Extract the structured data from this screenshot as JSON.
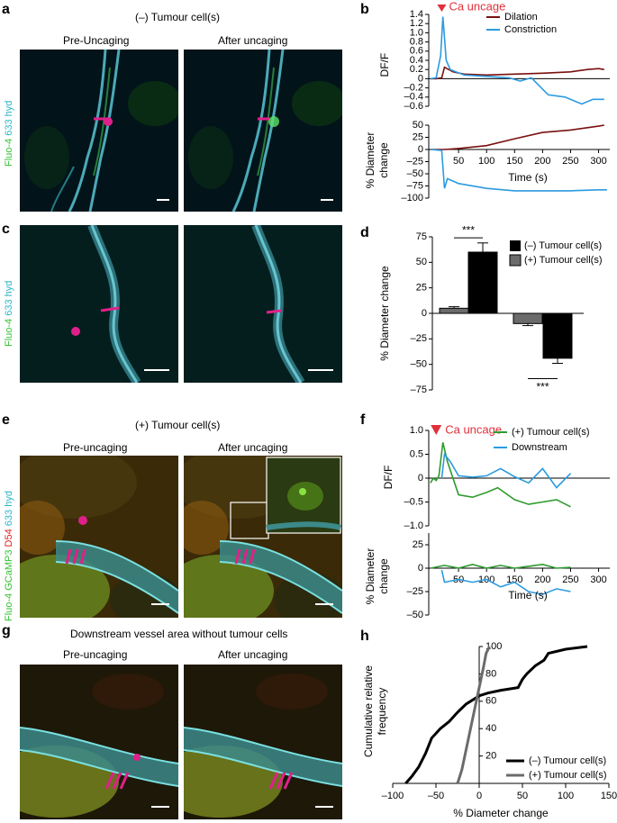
{
  "panels": {
    "a": {
      "letter": "a",
      "title": "(–) Tumour cell(s)",
      "left": "Pre-Uncaging",
      "right": "After uncaging",
      "ylabel_green": "Fluo-4",
      "ylabel_cyan": "633 hyd"
    },
    "b": {
      "letter": "b"
    },
    "c": {
      "letter": "c",
      "ylabel_green": "Fluo-4",
      "ylabel_cyan": "633 hyd"
    },
    "d": {
      "letter": "d"
    },
    "e": {
      "letter": "e",
      "title": "(+) Tumour cell(s)",
      "left": "Pre-uncaging",
      "right": "After uncaging",
      "ylabel_green": "Fluo-4 GCaMP3",
      "ylabel_red": "D54",
      "ylabel_cyan": "633 hyd"
    },
    "f": {
      "letter": "f"
    },
    "g": {
      "letter": "g",
      "title": "Downstream vessel area without tumour cells",
      "left": "Pre-uncaging",
      "right": "After uncaging"
    },
    "h": {
      "letter": "h"
    }
  },
  "colors": {
    "dark_red": "#7a1010",
    "blue": "#2b9be0",
    "green": "#2e9a2e",
    "gray": "#6b6b6b",
    "black": "#000000",
    "magenta": "#e0208a",
    "ca_red": "#e0303a"
  },
  "chart_data": [
    {
      "id": "b_top",
      "type": "line",
      "ylabel": "DF/F",
      "annotation": "Ca uncage",
      "ylim": [
        -0.7,
        1.4
      ],
      "yticks": [
        "1.4",
        "1.2",
        "1.0",
        "0.8",
        "0.6",
        "0.4",
        "0.2",
        "0",
        "–0.2",
        "–0.4",
        "–0.6"
      ],
      "ytick_values": [
        1.4,
        1.2,
        1.0,
        0.8,
        0.6,
        0.4,
        0.2,
        0,
        -0.2,
        -0.4,
        -0.6
      ],
      "series": [
        {
          "name": "Dilation",
          "color": "#7a1010",
          "x": [
            0,
            10,
            20,
            25,
            40,
            60,
            100,
            150,
            200,
            250,
            280,
            300,
            310
          ],
          "y": [
            0,
            0,
            0.02,
            0.25,
            0.15,
            0.1,
            0.08,
            0.1,
            0.12,
            0.15,
            0.2,
            0.22,
            0.2
          ]
        },
        {
          "name": "Constriction",
          "color": "#2b9be0",
          "x": [
            0,
            10,
            18,
            22,
            28,
            35,
            60,
            100,
            140,
            160,
            180,
            210,
            240,
            270,
            290,
            310
          ],
          "y": [
            0,
            0.02,
            0.5,
            1.35,
            0.4,
            0.2,
            0.08,
            0.05,
            0.02,
            -0.05,
            0.02,
            -0.35,
            -0.4,
            -0.55,
            -0.45,
            -0.45
          ]
        }
      ]
    },
    {
      "id": "b_bottom",
      "type": "line",
      "ylabel": "% Diameter change",
      "xlabel": "Time (s)",
      "xlim": [
        0,
        320
      ],
      "xticks": [
        50,
        100,
        150,
        200,
        250,
        300
      ],
      "ylim": [
        -100,
        50
      ],
      "yticks": [
        "50",
        "25",
        "0",
        "–25",
        "–50",
        "–75",
        "–100"
      ],
      "ytick_values": [
        50,
        25,
        0,
        -25,
        -50,
        -75,
        -100
      ],
      "series": [
        {
          "name": "Dilation",
          "color": "#7a1010",
          "x": [
            0,
            25,
            50,
            100,
            150,
            200,
            250,
            300,
            310
          ],
          "y": [
            0,
            0,
            2,
            8,
            22,
            35,
            40,
            48,
            50
          ]
        },
        {
          "name": "Constriction",
          "color": "#2b9be0",
          "x": [
            0,
            20,
            25,
            30,
            50,
            100,
            150,
            200,
            250,
            300,
            315
          ],
          "y": [
            0,
            -2,
            -80,
            -60,
            -70,
            -80,
            -85,
            -85,
            -85,
            -83,
            -83
          ]
        }
      ]
    },
    {
      "id": "d",
      "type": "bar",
      "ylabel": "% Diameter change",
      "ylim": [
        -75,
        75
      ],
      "yticks": [
        "75",
        "50",
        "25",
        "0",
        "–25",
        "–50",
        "–75"
      ],
      "ytick_values": [
        75,
        50,
        25,
        0,
        -25,
        -50,
        -75
      ],
      "groups": [
        {
          "neg_tumour": 60,
          "neg_err": 9,
          "pos_tumour": 5,
          "pos_err": 1.5,
          "sig": "***"
        },
        {
          "neg_tumour": -44,
          "neg_err": 5,
          "pos_tumour": -10,
          "pos_err": 2,
          "sig": "***"
        }
      ],
      "legend": [
        "(–) Tumour cell(s)",
        "(+) Tumour cell(s)"
      ]
    },
    {
      "id": "f_top",
      "type": "line",
      "ylabel": "DF/F",
      "annotation": "Ca uncage",
      "ylim": [
        -1.0,
        1.0
      ],
      "yticks": [
        "1.0",
        "0.5",
        "0",
        "–0.5",
        "–1.0"
      ],
      "ytick_values": [
        1.0,
        0.5,
        0,
        -0.5,
        -1.0
      ],
      "series": [
        {
          "name": "(+) Tumour cell(s)",
          "color": "#2e9a2e",
          "x": [
            0,
            5,
            10,
            15,
            22,
            30,
            50,
            75,
            100,
            120,
            150,
            175,
            200,
            225,
            250
          ],
          "y": [
            -0.1,
            0,
            -0.05,
            0.05,
            0.75,
            0.35,
            -0.35,
            -0.4,
            -0.3,
            -0.2,
            -0.45,
            -0.55,
            -0.5,
            -0.45,
            -0.6
          ]
        },
        {
          "name": "Downstream",
          "color": "#2b9be0",
          "x": [
            20,
            25,
            35,
            50,
            75,
            100,
            125,
            150,
            175,
            200,
            225,
            250
          ],
          "y": [
            0,
            0.5,
            0.35,
            0.05,
            0.02,
            0.05,
            0.2,
            0.03,
            -0.1,
            0.2,
            -0.2,
            0.1
          ]
        }
      ]
    },
    {
      "id": "f_bottom",
      "type": "line",
      "ylabel": "% Diameter change",
      "xlabel": "Time (s)",
      "xlim": [
        0,
        320
      ],
      "xticks": [
        50,
        100,
        150,
        200,
        250,
        300
      ],
      "ylim": [
        -50,
        37.5
      ],
      "yticks": [
        "25",
        "0",
        "–25",
        "–50"
      ],
      "ytick_values": [
        25,
        0,
        -25,
        -50
      ],
      "series": [
        {
          "name": "(+) Tumour cell(s)",
          "color": "#2e9a2e",
          "x": [
            0,
            25,
            50,
            75,
            100,
            125,
            150,
            175,
            200,
            225,
            250
          ],
          "y": [
            0,
            3,
            0,
            4,
            0,
            3,
            0,
            2,
            4,
            0,
            1
          ]
        },
        {
          "name": "Downstream",
          "color": "#2b9be0",
          "x": [
            20,
            25,
            50,
            75,
            100,
            125,
            150,
            175,
            200,
            225,
            250
          ],
          "y": [
            -2,
            -15,
            -12,
            -15,
            -12,
            -20,
            -15,
            -25,
            -28,
            -22,
            -25
          ]
        }
      ]
    },
    {
      "id": "h",
      "type": "line",
      "ylabel": "Cumulative relative frequency",
      "xlabel": "% Diameter change",
      "xlim": [
        -100,
        150
      ],
      "xticks": [
        -100,
        -50,
        0,
        50,
        100,
        150
      ],
      "xtick_labels": [
        "–100",
        "–50",
        "0",
        "50",
        "100",
        "150"
      ],
      "ylim": [
        0,
        100
      ],
      "yticks": [
        20,
        40,
        60,
        80,
        100
      ],
      "series": [
        {
          "name": "(–) Tumour cell(s)",
          "color": "#000000",
          "x": [
            -85,
            -78,
            -70,
            -62,
            -55,
            -45,
            -35,
            -25,
            -15,
            -5,
            0,
            10,
            25,
            45,
            50,
            55,
            65,
            75,
            80,
            100,
            125
          ],
          "y": [
            0,
            5,
            12,
            22,
            33,
            40,
            45,
            52,
            58,
            62,
            64,
            66,
            68,
            70,
            76,
            80,
            86,
            90,
            95,
            98,
            100
          ]
        },
        {
          "name": "(+) Tumour cell(s)",
          "color": "#6b6b6b",
          "x": [
            -25,
            -20,
            -15,
            -10,
            -5,
            0,
            5,
            8,
            12
          ],
          "y": [
            0,
            10,
            25,
            40,
            55,
            70,
            85,
            95,
            100
          ]
        }
      ]
    }
  ]
}
